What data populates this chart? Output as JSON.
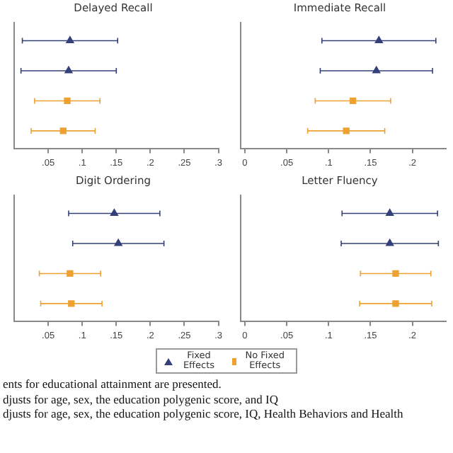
{
  "chart_data": [
    {
      "type": "scatter",
      "orientation": "horizontal",
      "title": "Delayed Recall",
      "categories": [
        null,
        null,
        null,
        null
      ],
      "xlim": [
        0,
        0.3
      ],
      "xticks": [
        {
          "value": 0.05,
          "label": ".05"
        },
        {
          "value": 0.1,
          "label": ".1"
        },
        {
          "value": 0.15,
          "label": ".15"
        },
        {
          "value": 0.2,
          "label": ".2"
        },
        {
          "value": 0.25,
          "label": ".25"
        },
        {
          "value": 0.3,
          "label": ".3"
        }
      ],
      "tick_labels": "x",
      "legend": "bottom",
      "annotations": [
        "ents for educational attainment are presented.",
        "djusts for age, sex, the education polygenic score, and IQ",
        "djusts for age, sex, the education polygenic score, IQ, Health Behaviors and Health"
      ],
      "series": [
        {
          "name": "Fixed Effects",
          "color": "#34407a",
          "marker": "triangle",
          "values": [
            0.082,
            0.08,
            null,
            null
          ],
          "errors": [
            0.07,
            0.07,
            null,
            null
          ]
        },
        {
          "name": "No Fixed Effects",
          "color": "#eda131",
          "marker": "square",
          "values": [
            null,
            null,
            0.078,
            0.072
          ],
          "errors": [
            null,
            null,
            0.048,
            0.047
          ]
        }
      ]
    },
    {
      "type": "scatter",
      "orientation": "horizontal",
      "title": "Immediate Recall",
      "categories": [
        null,
        null,
        null,
        null
      ],
      "xlim": [
        -0.005,
        0.24
      ],
      "xticks": [
        {
          "value": 0,
          "label": "0"
        },
        {
          "value": 0.05,
          "label": ".05"
        },
        {
          "value": 0.1,
          "label": ".1"
        },
        {
          "value": 0.15,
          "label": ".15"
        },
        {
          "value": 0.2,
          "label": ".2"
        }
      ],
      "tick_labels": "x",
      "series": [
        {
          "color": "#34407a",
          "marker": "triangle",
          "values": [
            0.16,
            0.157,
            null,
            null
          ],
          "errors": [
            0.068,
            0.067,
            null,
            null
          ]
        },
        {
          "color": "#eda131",
          "marker": "square",
          "values": [
            null,
            null,
            0.129,
            0.121
          ],
          "errors": [
            null,
            null,
            0.045,
            0.046
          ]
        }
      ]
    },
    {
      "type": "scatter",
      "orientation": "horizontal",
      "title": "Digit Ordering",
      "categories": [
        null,
        null,
        null,
        null
      ],
      "xlim": [
        0,
        0.3
      ],
      "xticks": [
        {
          "value": 0.05,
          "label": ".05"
        },
        {
          "value": 0.1,
          "label": ".1"
        },
        {
          "value": 0.15,
          "label": ".15"
        },
        {
          "value": 0.2,
          "label": ".2"
        },
        {
          "value": 0.25,
          "label": ".25"
        },
        {
          "value": 0.3,
          "label": ".3"
        }
      ],
      "tick_labels": "x",
      "series": [
        {
          "color": "#34407a",
          "marker": "triangle",
          "values": [
            0.147,
            0.153,
            null,
            null
          ],
          "errors": [
            0.067,
            0.067,
            null,
            null
          ]
        },
        {
          "color": "#eda131",
          "marker": "square",
          "values": [
            null,
            null,
            0.082,
            0.084
          ],
          "errors": [
            null,
            null,
            0.045,
            0.045
          ]
        }
      ]
    },
    {
      "type": "scatter",
      "orientation": "horizontal",
      "title": "Letter Fluency",
      "categories": [
        null,
        null,
        null,
        null
      ],
      "xlim": [
        -0.005,
        0.24
      ],
      "xticks": [
        {
          "value": 0,
          "label": "0"
        },
        {
          "value": 0.05,
          "label": ".05"
        },
        {
          "value": 0.1,
          "label": ".1"
        },
        {
          "value": 0.15,
          "label": ".15"
        },
        {
          "value": 0.2,
          "label": ".2"
        }
      ],
      "tick_labels": "x",
      "series": [
        {
          "color": "#34407a",
          "marker": "triangle",
          "values": [
            0.173,
            0.173,
            null,
            null
          ],
          "errors": [
            0.057,
            0.058,
            null,
            null
          ]
        },
        {
          "color": "#eda131",
          "marker": "square",
          "values": [
            null,
            null,
            0.18,
            0.18
          ],
          "errors": [
            null,
            null,
            0.042,
            0.043
          ]
        }
      ]
    }
  ]
}
